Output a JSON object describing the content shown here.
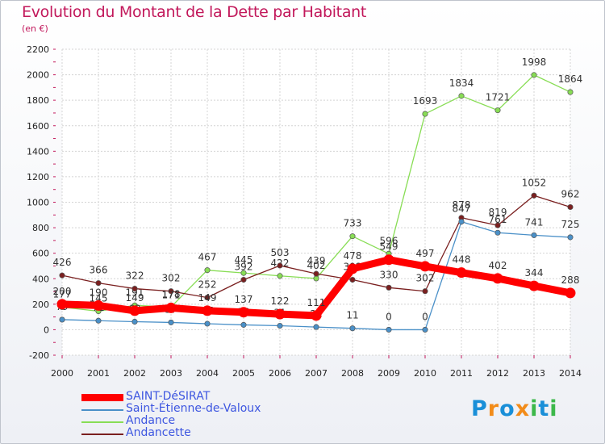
{
  "title": "Evolution du Montant de la Dette par Habitant",
  "subtitle": "(en €)",
  "logo": {
    "text": "Proxiti",
    "letters": [
      "P",
      "r",
      "o",
      "x",
      "i",
      "t",
      "i"
    ],
    "colors": [
      "#1a8fd8",
      "#f28c1a",
      "#1a8fd8",
      "#f28c1a",
      "#3cb84a",
      "#1a8fd8",
      "#3cb84a"
    ]
  },
  "chart_data": {
    "type": "line",
    "x": [
      "2000",
      "2001",
      "2002",
      "2003",
      "2004",
      "2005",
      "2006",
      "2007",
      "2008",
      "2009",
      "2010",
      "2011",
      "2012",
      "2013",
      "2014"
    ],
    "ylim": [
      -200,
      2200
    ],
    "yticks": [
      -200,
      0,
      200,
      400,
      600,
      800,
      1000,
      1200,
      1400,
      1600,
      1800,
      2000,
      2200
    ],
    "grid": true,
    "legend_position": "bottom-left",
    "series": [
      {
        "name": "SAINT-DéSIRAT",
        "color": "#ff0000",
        "values": [
          200,
          190,
          149,
          171,
          149,
          137,
          122,
          111,
          478,
          549,
          497,
          448,
          402,
          344,
          288
        ]
      },
      {
        "name": "Saint-Étienne-de-Valoux",
        "color": "#4a90c8",
        "values": [
          79,
          71,
          63,
          57,
          47,
          38,
          31,
          21,
          11,
          0,
          0,
          847,
          761,
          741,
          725
        ]
      },
      {
        "name": "Andance",
        "color": "#88dd55",
        "values": [
          177,
          145,
          191,
          178,
          467,
          445,
          422,
          402,
          733,
          596,
          1693,
          1834,
          1721,
          1998,
          1864
        ]
      },
      {
        "name": "Andancette",
        "color": "#7a1f1f",
        "values": [
          426,
          366,
          322,
          302,
          252,
          392,
          503,
          439,
          392,
          330,
          302,
          878,
          819,
          1052,
          962
        ]
      }
    ]
  }
}
